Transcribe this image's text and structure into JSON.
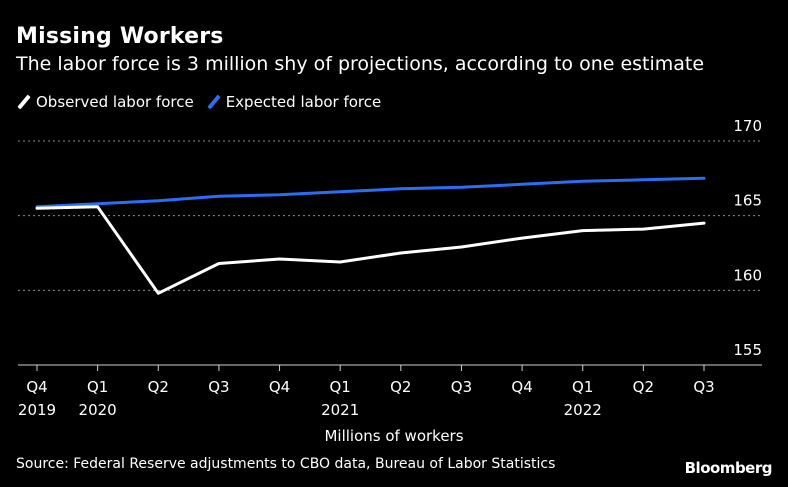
{
  "chart_data": {
    "type": "line",
    "title": "Missing Workers",
    "subtitle": "The labor force is 3 million shy of projections, according to one estimate",
    "xlabel": "Millions of workers",
    "ylabel": "",
    "ylim": [
      155,
      170
    ],
    "yticks": [
      "170",
      "165",
      "160",
      "155"
    ],
    "x_quarters": [
      "Q4",
      "Q1",
      "Q2",
      "Q3",
      "Q4",
      "Q1",
      "Q2",
      "Q3",
      "Q4",
      "Q1",
      "Q2",
      "Q3"
    ],
    "x_years": [
      "2019",
      "2020",
      "",
      "",
      "",
      "2021",
      "",
      "",
      "",
      "2022",
      "",
      ""
    ],
    "grid": true,
    "legend_position": "top-left",
    "series": [
      {
        "name": "Observed labor force",
        "color": "#ffffff",
        "values": [
          165.5,
          165.6,
          159.8,
          161.8,
          162.1,
          161.9,
          162.5,
          162.9,
          163.5,
          164.0,
          164.1,
          164.5
        ]
      },
      {
        "name": "Expected labor force",
        "color": "#2a6ef5",
        "values": [
          165.6,
          165.8,
          166.0,
          166.3,
          166.4,
          166.6,
          166.8,
          166.9,
          167.1,
          167.3,
          167.4,
          167.5
        ]
      }
    ]
  },
  "source": "Source: Federal Reserve adjustments to CBO data, Bureau of Labor Statistics",
  "brand": "Bloomberg"
}
